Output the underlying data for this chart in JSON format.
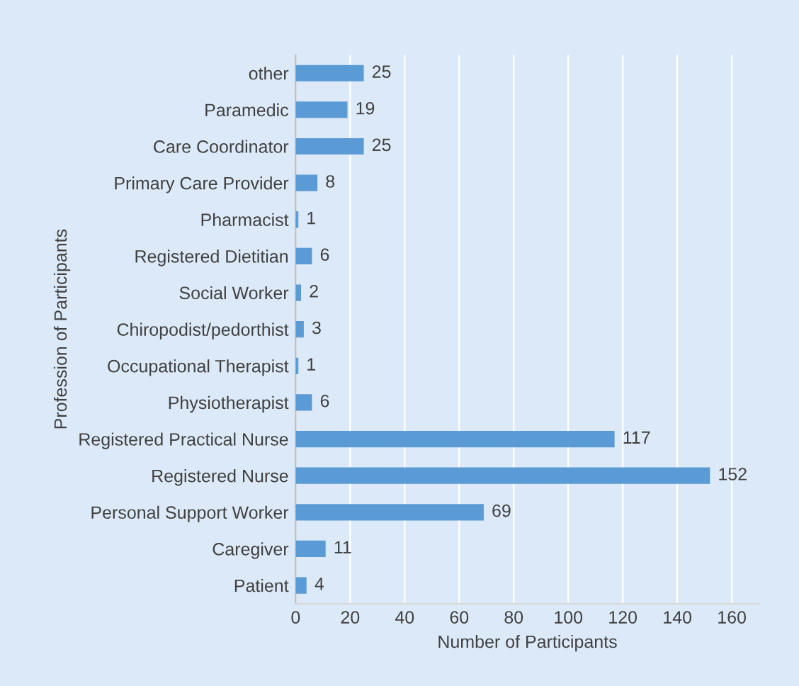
{
  "chart_data": {
    "type": "bar",
    "orientation": "horizontal",
    "xlabel": "Number of Participants",
    "ylabel": "Profession of Participants",
    "categories": [
      "other",
      "Paramedic",
      "Care Coordinator",
      "Primary Care Provider",
      "Pharmacist",
      "Registered Dietitian",
      "Social Worker",
      "Chiropodist/pedorthist",
      "Occupational Therapist",
      "Physiotherapist",
      "Registered Practical Nurse",
      "Registered Nurse",
      "Personal Support Worker",
      "Caregiver",
      "Patient"
    ],
    "values": [
      25,
      19,
      25,
      8,
      1,
      6,
      2,
      3,
      1,
      6,
      117,
      152,
      69,
      11,
      4
    ],
    "color": "#5b9bd5",
    "xlim": [
      0,
      170
    ],
    "xticks": [
      0,
      20,
      40,
      60,
      80,
      100,
      120,
      140,
      160
    ],
    "grid": "x",
    "data_labels": true
  }
}
